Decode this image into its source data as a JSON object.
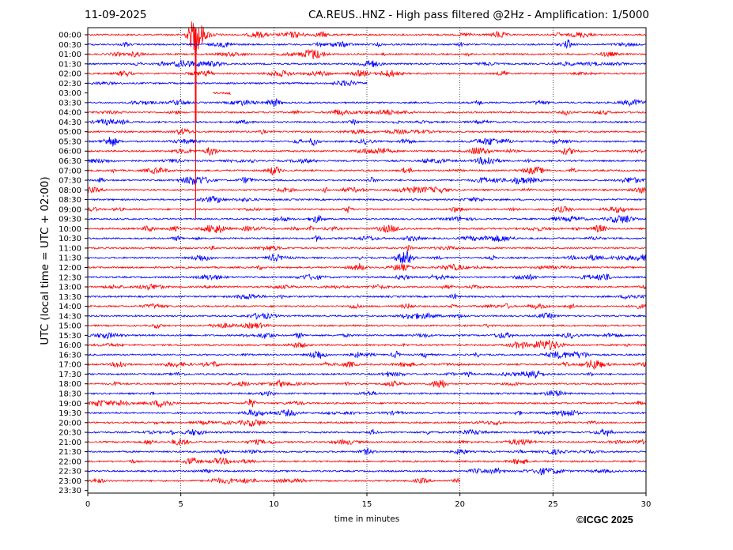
{
  "header": {
    "date": "11-09-2025",
    "title": "CA.REUS..HNZ - High pass filtered @2Hz - Amplification: 1/5000"
  },
  "footer": {
    "copyright": "©ICGC 2025"
  },
  "colors": {
    "even_rows": "#ff0000",
    "odd_rows": "#0000ff",
    "gridlines": "#000000"
  },
  "chart_data": {
    "type": "line",
    "title": "CA.REUS..HNZ - High pass filtered @2Hz - Amplification: 1/5000",
    "xlabel": "time in minutes",
    "ylabel": "UTC (local time = UTC + 02:00)",
    "xlim": [
      0,
      30
    ],
    "x_ticks": [
      0,
      5,
      10,
      15,
      20,
      25,
      30
    ],
    "grid": "vertical dotted lines at 5, 10, 15, 20, 25",
    "rows": [
      "00:00",
      "00:30",
      "01:00",
      "01:30",
      "02:00",
      "02:30",
      "03:00",
      "03:30",
      "04:00",
      "04:30",
      "05:00",
      "05:30",
      "06:00",
      "06:30",
      "07:00",
      "07:30",
      "08:00",
      "08:30",
      "09:00",
      "09:30",
      "10:00",
      "10:30",
      "11:00",
      "11:30",
      "12:00",
      "12:30",
      "13:00",
      "13:30",
      "14:00",
      "14:30",
      "15:00",
      "15:30",
      "16:00",
      "16:30",
      "17:00",
      "17:30",
      "18:00",
      "18:30",
      "19:00",
      "19:30",
      "20:00",
      "20:30",
      "21:00",
      "21:30",
      "22:00",
      "22:30",
      "23:00",
      "23:30"
    ],
    "data_gaps": [
      {
        "row": "02:30",
        "from_min": 15,
        "to_min": 30
      },
      {
        "row": "03:00",
        "from_min": 0,
        "to_min": 6.7
      },
      {
        "row": "03:00",
        "from_min": 7.7,
        "to_min": 30
      },
      {
        "row": "23:00",
        "from_min": 20,
        "to_min": 30
      },
      {
        "row": "23:30",
        "from_min": 0,
        "to_min": 30
      }
    ],
    "events": [
      {
        "row": "00:00",
        "minute": 5.8,
        "amplitude": 10
      },
      {
        "row": "03:30",
        "minute": 10.0,
        "amplitude": 2
      },
      {
        "row": "07:00",
        "minute": 10.0,
        "amplitude": 2.2
      },
      {
        "row": "08:30",
        "minute": 6.9,
        "amplitude": 1.6
      },
      {
        "row": "09:30",
        "minute": 12.3,
        "amplitude": 2.0
      },
      {
        "row": "10:00",
        "minute": 27.5,
        "amplitude": 2.0
      },
      {
        "row": "11:30",
        "minute": 6.0,
        "amplitude": 1.5
      },
      {
        "row": "12:30",
        "minute": 27.7,
        "amplitude": 2.2
      },
      {
        "row": "16:30",
        "minute": 12.3,
        "amplitude": 2.2
      },
      {
        "row": "17:00",
        "minute": 1.7,
        "amplitude": 2.0
      },
      {
        "row": "18:00",
        "minute": 18.9,
        "amplitude": 3.0
      },
      {
        "row": "22:00",
        "minute": 5.6,
        "amplitude": 2.0
      }
    ]
  }
}
